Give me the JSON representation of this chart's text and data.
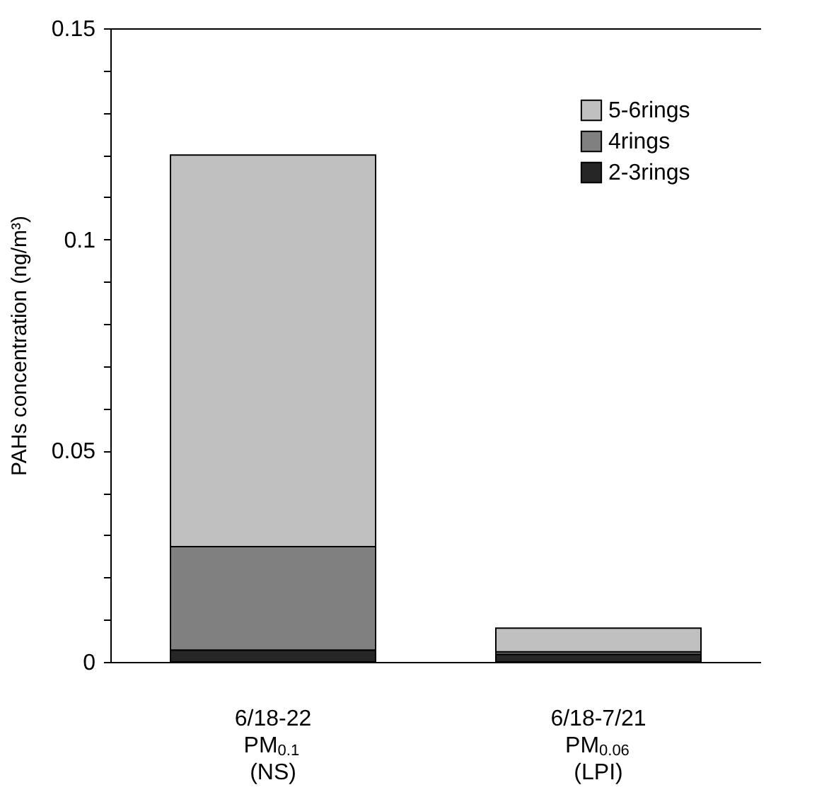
{
  "chart_data": {
    "type": "bar",
    "stacked": true,
    "ylabel": "PAHs concentration (ng/m³)",
    "categories": [
      "6/18-22\nPM$_{0.1}$\n(NS)",
      "6/18-7/21\nPM$_{0.06}$\n(LPI)"
    ],
    "series": [
      {
        "name": "2-3rings",
        "color": "#262626",
        "values": [
          0.0028,
          0.0018
        ]
      },
      {
        "name": "4rings",
        "color": "#808080",
        "values": [
          0.0245,
          0.0006
        ]
      },
      {
        "name": "5-6rings",
        "color": "#c0c0c0",
        "values": [
          0.0927,
          0.0056
        ]
      }
    ],
    "ylim": [
      0,
      0.15
    ],
    "yticks": [
      0,
      {
        "value": 0.01,
        "label": null
      },
      {
        "value": 0.02,
        "label": null
      },
      {
        "value": 0.03,
        "label": null
      },
      {
        "value": 0.04,
        "label": null
      },
      0.05,
      {
        "value": 0.06,
        "label": null
      },
      {
        "value": 0.07,
        "label": null
      },
      {
        "value": 0.08,
        "label": null
      },
      {
        "value": 0.09,
        "label": null
      },
      0.1,
      {
        "value": 0.11,
        "label": null
      },
      {
        "value": 0.12,
        "label": null
      },
      {
        "value": 0.13,
        "label": null
      },
      {
        "value": 0.14,
        "label": null
      },
      0.15
    ],
    "grid": false,
    "legend": "top right"
  }
}
